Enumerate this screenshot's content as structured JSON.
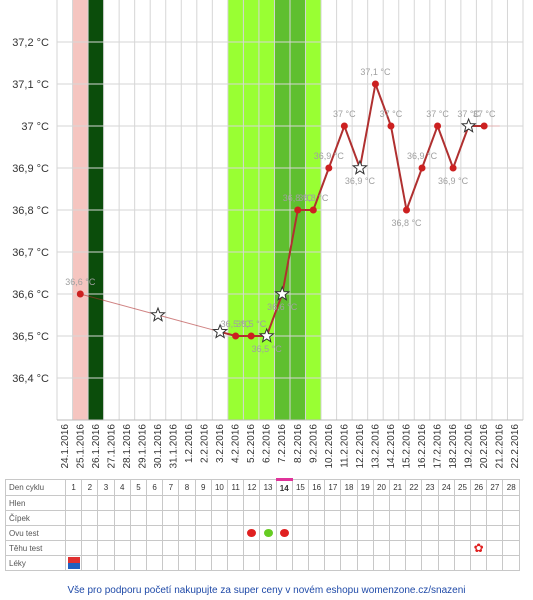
{
  "chart_data": {
    "type": "line",
    "y_ticks": [
      "36,4 °C",
      "36,5 °C",
      "36,6 °C",
      "36,7 °C",
      "36,8 °C",
      "36,9 °C",
      "37 °C",
      "37,1 °C",
      "37,2 °C"
    ],
    "ylim": [
      36.3,
      37.3
    ],
    "dates": [
      "24.1.2016",
      "25.1.2016",
      "26.1.2016",
      "27.1.2016",
      "28.1.2016",
      "29.1.2016",
      "30.1.2016",
      "31.1.2016",
      "1.2.2016",
      "2.2.2016",
      "3.2.2016",
      "4.2.2016",
      "5.2.2016",
      "6.2.2016",
      "7.2.2016",
      "8.2.2016",
      "9.2.2016",
      "10.2.2016",
      "11.2.2016",
      "12.2.2016",
      "13.2.2016",
      "14.2.2016",
      "15.2.2016",
      "16.2.2016",
      "17.2.2016",
      "18.2.2016",
      "19.2.2016",
      "20.2.2016",
      "21.2.2016",
      "22.2.2016"
    ],
    "points": [
      {
        "x": "25.1.2016",
        "y": 36.6,
        "label": "36,6 °C",
        "marker": "dot"
      },
      {
        "x": "30.1.2016",
        "y": 36.55,
        "label": "",
        "marker": "star"
      },
      {
        "x": "3.2.2016",
        "y": 36.51,
        "label": "",
        "marker": "star"
      },
      {
        "x": "4.2.2016",
        "y": 36.5,
        "label": "36,5 °C",
        "marker": "dot"
      },
      {
        "x": "5.2.2016",
        "y": 36.5,
        "label": "36,5 °C",
        "marker": "dot"
      },
      {
        "x": "6.2.2016",
        "y": 36.5,
        "label": "36,5 °C",
        "marker": "star"
      },
      {
        "x": "7.2.2016",
        "y": 36.6,
        "label": "36,6 °C",
        "marker": "star"
      },
      {
        "x": "8.2.2016",
        "y": 36.8,
        "label": "36,8 °C",
        "marker": "dot"
      },
      {
        "x": "9.2.2016",
        "y": 36.8,
        "label": "36,8 °C",
        "marker": "dot"
      },
      {
        "x": "10.2.2016",
        "y": 36.9,
        "label": "36,9 °C",
        "marker": "dot"
      },
      {
        "x": "11.2.2016",
        "y": 37.0,
        "label": "37 °C",
        "marker": "dot"
      },
      {
        "x": "12.2.2016",
        "y": 36.9,
        "label": "36,9 °C",
        "marker": "star"
      },
      {
        "x": "13.2.2016",
        "y": 37.1,
        "label": "37,1 °C",
        "marker": "dot"
      },
      {
        "x": "14.2.2016",
        "y": 37.0,
        "label": "37 °C",
        "marker": "dot"
      },
      {
        "x": "15.2.2016",
        "y": 36.8,
        "label": "36,8 °C",
        "marker": "dot"
      },
      {
        "x": "16.2.2016",
        "y": 36.9,
        "label": "36,9 °C",
        "marker": "dot"
      },
      {
        "x": "17.2.2016",
        "y": 37.0,
        "label": "37 °C",
        "marker": "dot"
      },
      {
        "x": "18.2.2016",
        "y": 36.9,
        "label": "36,9 °C",
        "marker": "dot"
      },
      {
        "x": "19.2.2016",
        "y": 37.0,
        "label": "37 °C",
        "marker": "star"
      },
      {
        "x": "20.2.2016",
        "y": 37.0,
        "label": "37 °C",
        "marker": "dot"
      }
    ],
    "dashed_from_index": 2,
    "bands": [
      {
        "from": "25.1.2016",
        "to": "25.1.2016",
        "color": "#f5c5c0"
      },
      {
        "from": "26.1.2016",
        "to": "26.1.2016",
        "color": "#0b4d0b"
      },
      {
        "from": "4.2.2016",
        "to": "9.2.2016",
        "color": "#99ff33"
      },
      {
        "from": "7.2.2016",
        "to": "8.2.2016",
        "color": "#5fbf2f"
      }
    ],
    "colors": {
      "line": "#b03030",
      "dot": "#cc2020",
      "label": "#a0a0a0",
      "grid": "#d6d6d6"
    }
  },
  "table": {
    "rows": [
      {
        "label": "Den cyklu",
        "cells": [
          "1",
          "2",
          "3",
          "4",
          "5",
          "6",
          "7",
          "8",
          "9",
          "10",
          "11",
          "12",
          "13",
          "14",
          "15",
          "16",
          "17",
          "18",
          "19",
          "20",
          "21",
          "22",
          "23",
          "24",
          "25",
          "26",
          "27",
          "28"
        ]
      },
      {
        "label": "Hlen",
        "cells": []
      },
      {
        "label": "Čípek",
        "cells": []
      },
      {
        "label": "Ovu test",
        "cells": []
      },
      {
        "label": "Těhu test",
        "cells": []
      },
      {
        "label": "Léky",
        "cells": []
      }
    ],
    "today_day": "14",
    "ovu_marks": [
      {
        "day": 12,
        "color": "#e02020",
        "icon": "red-mark-icon"
      },
      {
        "day": 13,
        "color": "#66cc22",
        "icon": "green-mark-icon"
      },
      {
        "day": 14,
        "color": "#e02020",
        "icon": "red-mark-icon"
      }
    ],
    "pregnancy_mark": {
      "day": 26,
      "color": "#e02020",
      "icon": "flower-icon"
    },
    "medication_mark": {
      "day": 1,
      "colors": [
        "#e03030",
        "#2060c0"
      ],
      "icon": "medication-icon"
    }
  },
  "footer": "Vše pro podporu početí nakupujte za super ceny v novém eshopu womenzone.cz/snazeni"
}
